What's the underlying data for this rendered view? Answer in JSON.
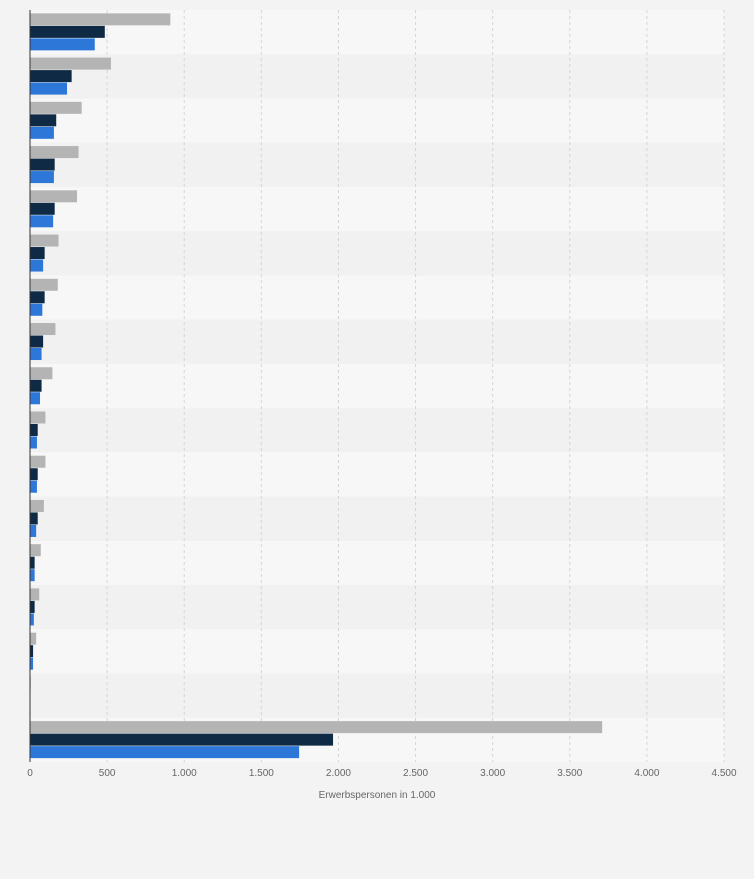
{
  "chart_data": {
    "type": "bar",
    "orientation": "horizontal",
    "categories": [
      "",
      "",
      "",
      "",
      "",
      "",
      "",
      "",
      "",
      "",
      "",
      "",
      "",
      "",
      "",
      "",
      ""
    ],
    "series": [
      {
        "color": "#b4b4b4",
        "values": [
          910,
          525,
          335,
          315,
          305,
          185,
          180,
          165,
          145,
          100,
          100,
          90,
          70,
          60,
          40,
          5,
          3710
        ]
      },
      {
        "color": "#0f2a44",
        "values": [
          485,
          270,
          170,
          160,
          160,
          95,
          95,
          85,
          75,
          50,
          50,
          50,
          30,
          30,
          20,
          3,
          1965
        ]
      },
      {
        "color": "#2d77d8",
        "values": [
          420,
          240,
          155,
          155,
          150,
          85,
          80,
          75,
          65,
          45,
          45,
          40,
          30,
          25,
          20,
          2,
          1745
        ]
      }
    ],
    "xlabel": "Erwerbspersonen in 1.000",
    "xlim": [
      0,
      4500
    ],
    "xticks": [
      0,
      500,
      1000,
      1500,
      2000,
      2500,
      3000,
      3500,
      4000,
      4500
    ],
    "xtick_labels": [
      "0",
      "500",
      "1.000",
      "1.500",
      "2.000",
      "2.500",
      "3.000",
      "3.500",
      "4.000",
      "4.500"
    ],
    "grid": true,
    "legend": "none"
  }
}
